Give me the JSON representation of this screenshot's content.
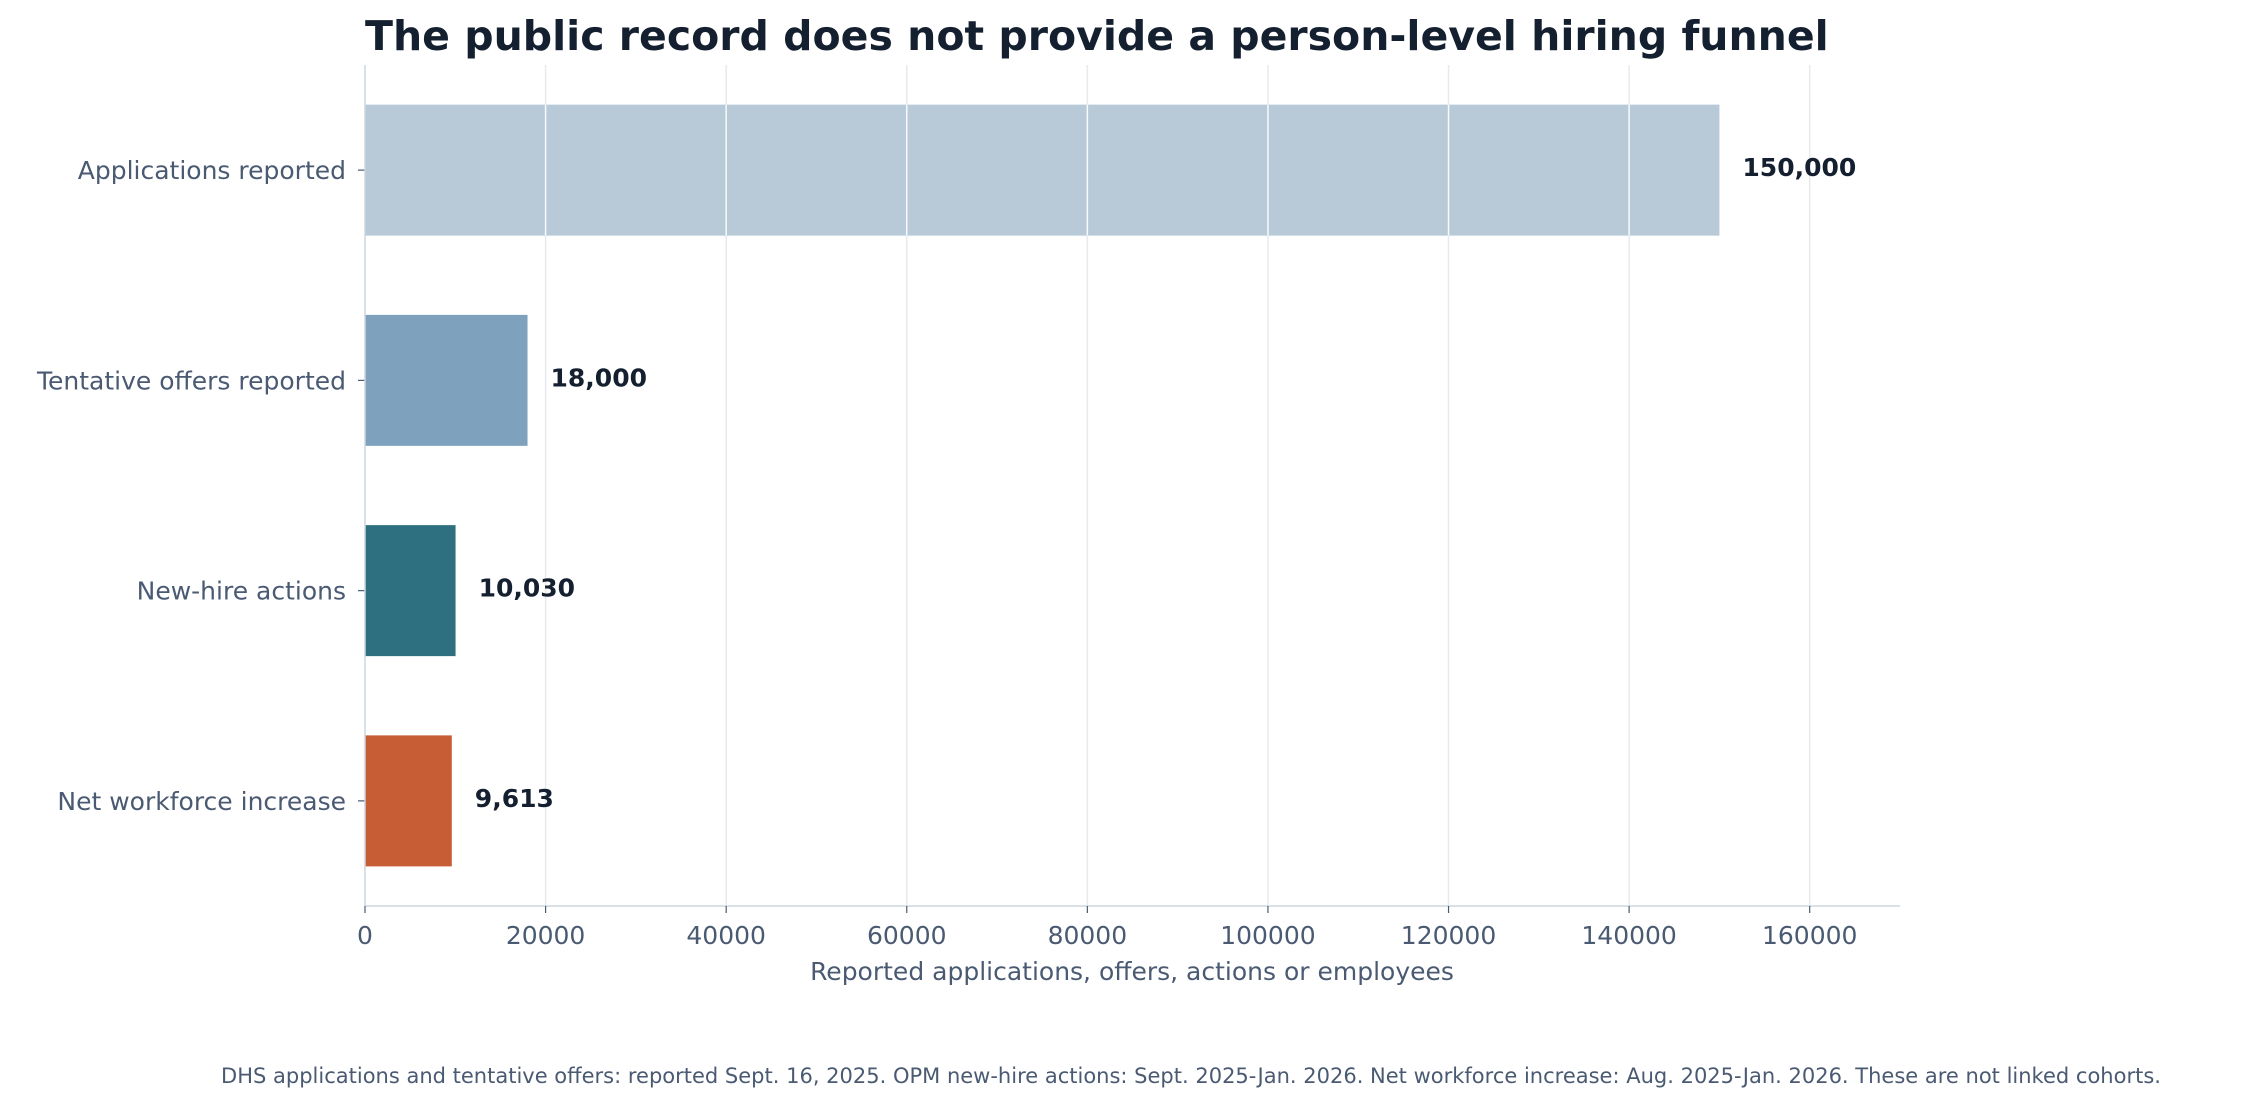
{
  "chart_data": {
    "type": "bar",
    "orientation": "horizontal",
    "title": "The public record does not provide a person-level hiring funnel",
    "xlabel": "Reported applications, offers, actions or employees",
    "ylabel": "",
    "xlim": [
      0,
      170000
    ],
    "x_ticks": [
      0,
      20000,
      40000,
      60000,
      80000,
      100000,
      120000,
      140000,
      160000
    ],
    "x_tick_labels": [
      "0",
      "20000",
      "40000",
      "60000",
      "80000",
      "100000",
      "120000",
      "140000",
      "160000"
    ],
    "grid": "vertical",
    "bars": [
      {
        "category": "Applications reported",
        "value": 150000,
        "value_label": "150,000",
        "color": "#b8c9d7"
      },
      {
        "category": "Tentative offers reported",
        "value": 18000,
        "value_label": "18,000",
        "color": "#7ea2bd"
      },
      {
        "category": "New-hire actions",
        "value": 10030,
        "value_label": "10,030",
        "color": "#2e7080"
      },
      {
        "category": "Net workforce increase",
        "value": 9613,
        "value_label": "9,613",
        "color": "#c65d35"
      }
    ],
    "footnote": "DHS applications and tentative offers: reported Sept. 16, 2025. OPM new-hire actions: Sept. 2025-Jan. 2026. Net workforce increase: Aug. 2025-Jan. 2026. These are not linked cohorts."
  },
  "colors": {
    "gridline": "#e6e9ee",
    "axis": "#cdd5df",
    "text_dark": "#14202f",
    "text_muted": "#4a5a72"
  }
}
